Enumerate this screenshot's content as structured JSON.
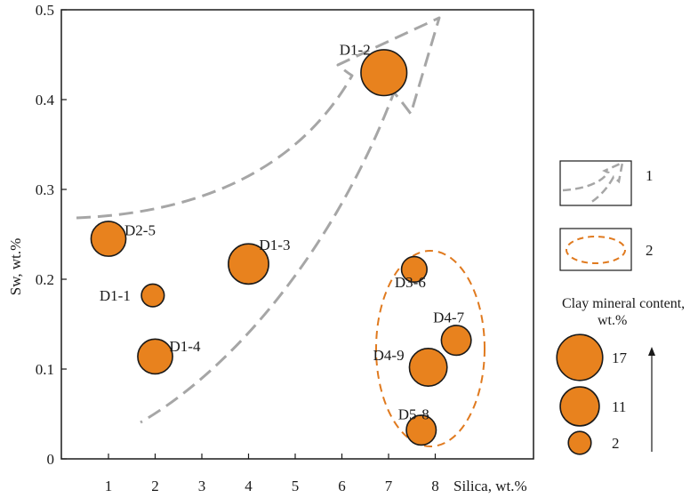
{
  "chart_data": {
    "type": "scatter",
    "xlabel": "Silica, wt.%",
    "ylabel": "Sw, wt.%",
    "ylim": [
      0,
      0.5
    ],
    "x_ticks": [
      "1",
      "2",
      "3",
      "4",
      "5",
      "6",
      "7",
      "8"
    ],
    "y_ticks": [
      "0",
      "0.1",
      "0.2",
      "0.3",
      "0.4",
      "0.5"
    ],
    "grid": false,
    "marker_color": "#E8821E",
    "points": [
      {
        "label": "D1-2",
        "x": 6.9,
        "y": 0.43,
        "clay": 17
      },
      {
        "label": "D2-5",
        "x": 1.0,
        "y": 0.245,
        "clay": 8
      },
      {
        "label": "D1-3",
        "x": 4.0,
        "y": 0.217,
        "clay": 12
      },
      {
        "label": "D1-1",
        "x": 1.95,
        "y": 0.182,
        "clay": 2
      },
      {
        "label": "D1-4",
        "x": 2.0,
        "y": 0.114,
        "clay": 8
      },
      {
        "label": "D3-6",
        "x": 7.55,
        "y": 0.211,
        "clay": 3
      },
      {
        "label": "D4-7",
        "x": 8.45,
        "y": 0.132,
        "clay": 5
      },
      {
        "label": "D4-9",
        "x": 7.85,
        "y": 0.102,
        "clay": 10
      },
      {
        "label": "D5-8",
        "x": 7.7,
        "y": 0.032,
        "clay": 5
      }
    ],
    "legend": {
      "items": [
        {
          "symbol": "arrow",
          "label": "1"
        },
        {
          "symbol": "dashed-ellipse",
          "label": "2"
        }
      ],
      "size_title_line1": "Clay mineral content,",
      "size_title_line2": "wt.%",
      "sizes": [
        {
          "value": 17,
          "label": "17"
        },
        {
          "value": 11,
          "label": "11"
        },
        {
          "value": 2,
          "label": "2"
        }
      ]
    }
  }
}
